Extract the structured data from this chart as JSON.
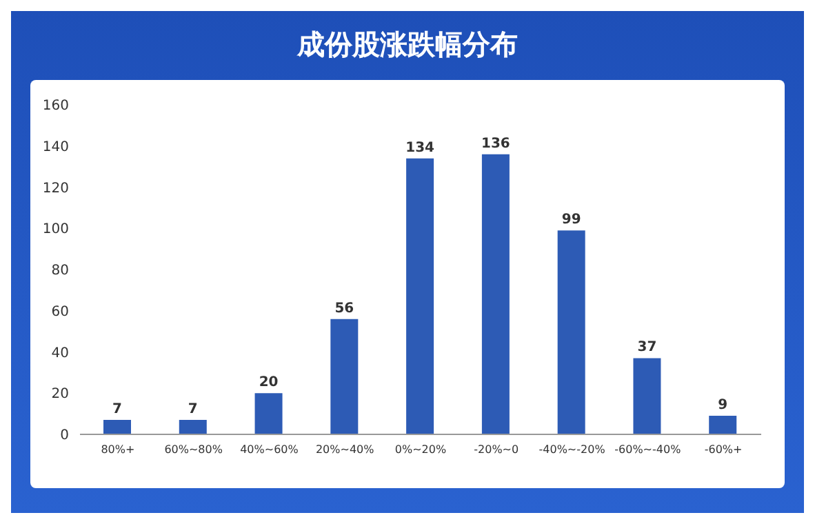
{
  "chart_data": {
    "type": "bar",
    "title": "成份股涨跌幅分布",
    "categories": [
      "80%+",
      "60%~80%",
      "40%~60%",
      "20%~40%",
      "0%~20%",
      "-20%~0",
      "-40%~-20%",
      "-60%~-40%",
      "-60%+"
    ],
    "values": [
      7,
      7,
      20,
      56,
      134,
      136,
      99,
      37,
      9
    ],
    "color": "#2d5bb5",
    "ylim": [
      0,
      160
    ],
    "yticks": [
      0,
      20,
      40,
      60,
      80,
      100,
      120,
      140,
      160
    ],
    "grid": false,
    "data_labels": true
  }
}
